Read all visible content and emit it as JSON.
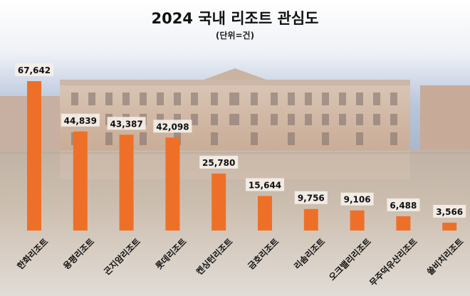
{
  "colors": {
    "bar": "#ee7028",
    "label_bg": "#f4efe8",
    "text": "#111111"
  },
  "background": {
    "image": "building-plaza-photo"
  },
  "chart_data": {
    "type": "bar",
    "title": "2024 국내 리조트 관심도",
    "subtitle": "(단위=건)",
    "categories": [
      "한화리조트",
      "용평리조트",
      "곤지암리조트",
      "롯데리조트",
      "켄싱턴리조트",
      "금호리조트",
      "리솜리조트",
      "오크밸리리조트",
      "무주덕유산리조트",
      "쏠비치리조트"
    ],
    "values": [
      67642,
      44839,
      43387,
      42098,
      25780,
      15644,
      9756,
      9106,
      6488,
      3566
    ],
    "value_labels": [
      "67,642",
      "44,839",
      "43,387",
      "42,098",
      "25,780",
      "15,644",
      "9,756",
      "9,106",
      "6,488",
      "3,566"
    ],
    "ylim": [
      0,
      67642
    ],
    "grid": false,
    "legend": "none"
  }
}
